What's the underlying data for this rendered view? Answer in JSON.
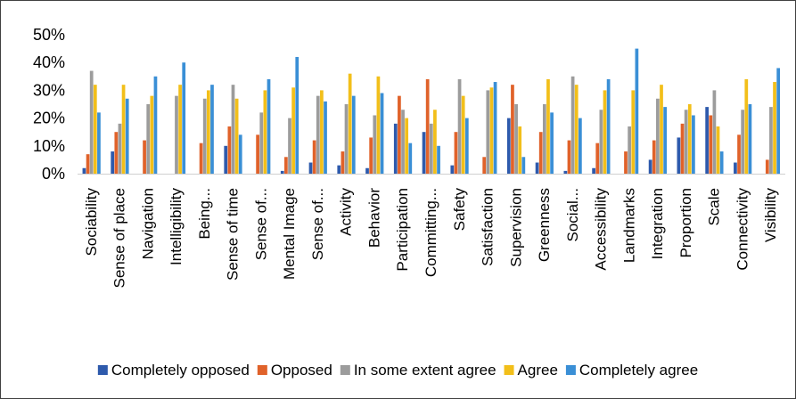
{
  "chart_data": {
    "type": "bar",
    "title": "",
    "xlabel": "",
    "ylabel": "",
    "ylim": [
      0,
      50
    ],
    "y_tick_values": [
      0,
      10,
      20,
      30,
      40,
      50
    ],
    "y_tick_labels": [
      "0%",
      "10%",
      "20%",
      "30%",
      "40%",
      "50%"
    ],
    "grid": false,
    "legend_position": "bottom",
    "categories": [
      "Sociability",
      "Sense of place",
      "Navigation",
      "Intelligibility",
      "Being...",
      "Sense of time",
      "Sense of...",
      "Mental Image",
      "Sense of...",
      "Activity",
      "Behavior",
      "Participation",
      "Committing...",
      "Safety",
      "Satisfaction",
      "Supervision",
      "Greenness",
      "Social...",
      "Accessibility",
      "Landmarks",
      "Integration",
      "Proportion",
      "Scale",
      "Connectivity",
      "Visibility"
    ],
    "series": [
      {
        "name": "Completely opposed",
        "color": "#2E5AAC",
        "values": [
          2,
          8,
          0,
          0,
          0,
          10,
          0,
          1,
          4,
          3,
          2,
          18,
          15,
          3,
          0,
          20,
          4,
          1,
          2,
          0,
          5,
          13,
          24,
          4,
          0
        ]
      },
      {
        "name": "Opposed",
        "color": "#E0622A",
        "values": [
          7,
          15,
          12,
          0,
          11,
          17,
          14,
          6,
          12,
          8,
          13,
          28,
          34,
          15,
          6,
          32,
          15,
          12,
          11,
          8,
          12,
          18,
          21,
          14,
          5
        ]
      },
      {
        "name": "In some extent agree",
        "color": "#9C9C9C",
        "values": [
          37,
          18,
          25,
          28,
          27,
          32,
          22,
          20,
          28,
          25,
          21,
          23,
          18,
          34,
          30,
          25,
          25,
          35,
          23,
          17,
          27,
          23,
          30,
          23,
          24
        ]
      },
      {
        "name": "Agree",
        "color": "#F2BF1A",
        "values": [
          32,
          32,
          28,
          32,
          30,
          27,
          30,
          31,
          30,
          36,
          35,
          20,
          23,
          28,
          31,
          17,
          34,
          32,
          30,
          30,
          32,
          25,
          17,
          34,
          33
        ]
      },
      {
        "name": "Completely agree",
        "color": "#3A8FD6",
        "values": [
          22,
          27,
          35,
          40,
          32,
          14,
          34,
          42,
          26,
          28,
          29,
          11,
          10,
          20,
          33,
          6,
          22,
          20,
          34,
          45,
          24,
          21,
          8,
          25,
          38
        ]
      }
    ]
  }
}
